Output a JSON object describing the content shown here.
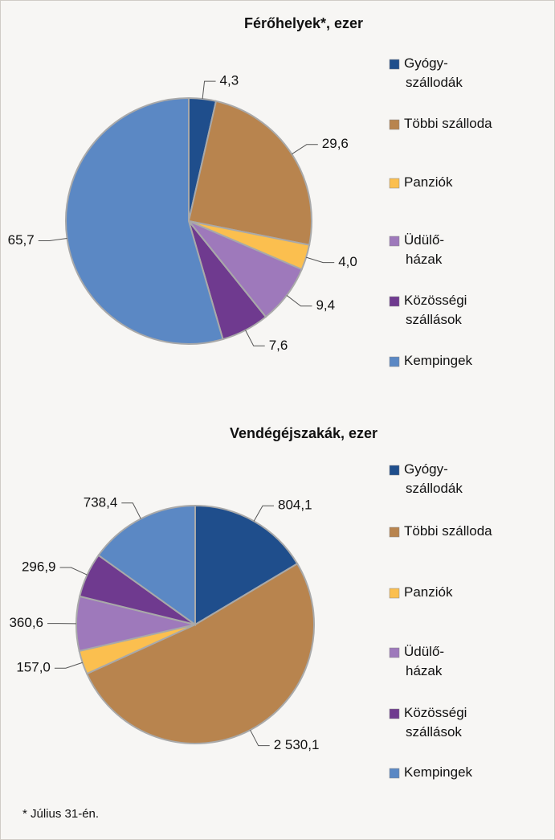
{
  "chart_data": [
    {
      "type": "pie",
      "title": "Férőhelyek*, ezer",
      "categories": [
        "Gyógy-\nszállodák",
        "Többi szálloda",
        "Panziók",
        "Üdülő-\nházak",
        "Közösségi\nszállások",
        "Kempingek"
      ],
      "values": [
        4.3,
        29.6,
        4.0,
        9.4,
        7.6,
        65.7
      ],
      "value_labels": [
        "4,3",
        "29,6",
        "4,0",
        "9,4",
        "7,6",
        "65,7"
      ],
      "colors": [
        "#1f4e8c",
        "#b8844e",
        "#fbbf4f",
        "#9e79bb",
        "#6f3a8f",
        "#5b88c4"
      ]
    },
    {
      "type": "pie",
      "title": "Vendégéjszakák, ezer",
      "categories": [
        "Gyógy-\nszállodák",
        "Többi szálloda",
        "Panziók",
        "Üdülő-\nházak",
        "Közösségi\nszállások",
        "Kempingek"
      ],
      "values": [
        804.1,
        2530.1,
        157.0,
        360.6,
        296.9,
        738.4
      ],
      "value_labels": [
        "804,1",
        "2 530,1",
        "157,0",
        "360,6",
        "296,9",
        "738,4"
      ],
      "colors": [
        "#1f4e8c",
        "#b8844e",
        "#fbbf4f",
        "#9e79bb",
        "#6f3a8f",
        "#5b88c4"
      ]
    }
  ],
  "footnote": "* Július 31-én."
}
